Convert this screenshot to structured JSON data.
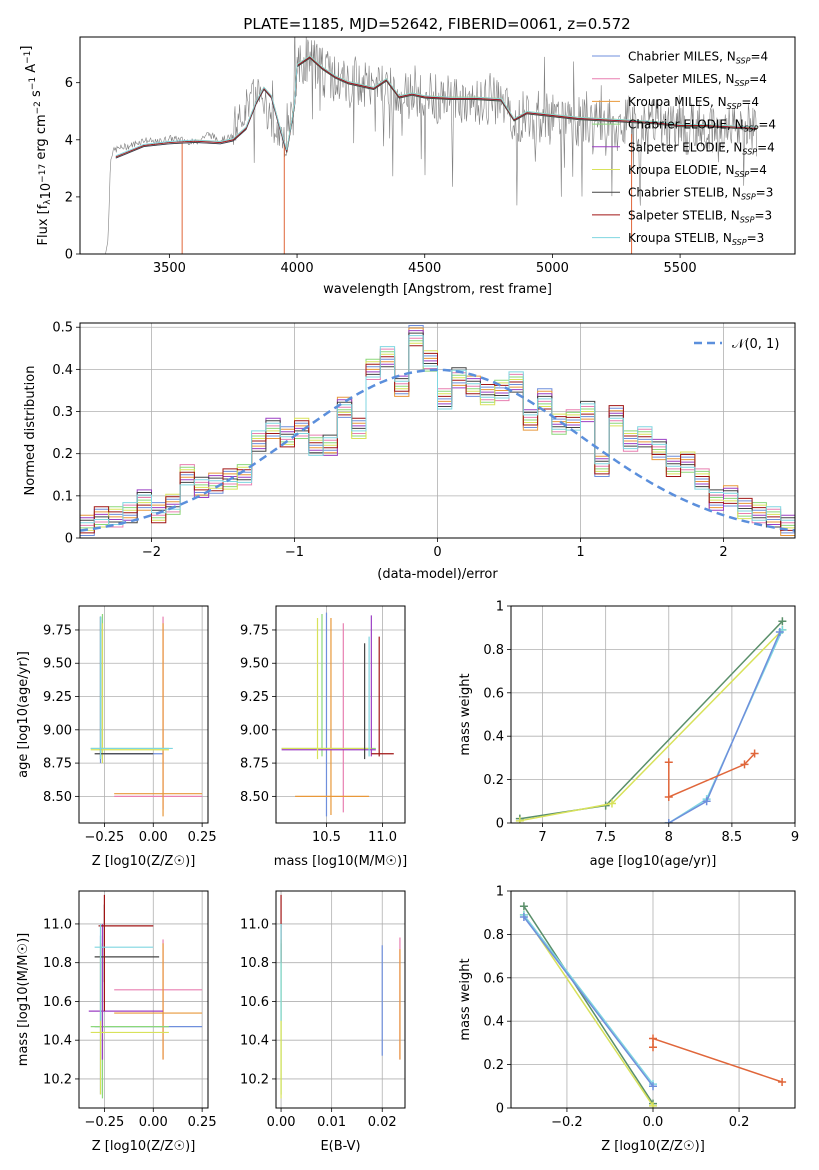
{
  "figure": {
    "title": "PLATE=1185, MJD=52642, FIBERID=0061, z=0.572"
  },
  "legend": [
    {
      "label": "Chabrier MILES, N",
      "sub": "SSP",
      "tail": "=4",
      "color": "#6f8fdc"
    },
    {
      "label": "Salpeter MILES, N",
      "sub": "SSP",
      "tail": "=4",
      "color": "#e87fb0"
    },
    {
      "label": "Kroupa MILES, N",
      "sub": "SSP",
      "tail": "=4",
      "color": "#e8983a"
    },
    {
      "label": "Chabrier ELODIE, N",
      "sub": "SSP",
      "tail": "=4",
      "color": "#8bd87a"
    },
    {
      "label": "Salpeter ELODIE, N",
      "sub": "SSP",
      "tail": "=4",
      "color": "#9b3fc4"
    },
    {
      "label": "Kroupa ELODIE, N",
      "sub": "SSP",
      "tail": "=4",
      "color": "#d8e25a"
    },
    {
      "label": "Chabrier STELIB, N",
      "sub": "SSP",
      "tail": "=3",
      "color": "#444444"
    },
    {
      "label": "Salpeter STELIB, N",
      "sub": "SSP",
      "tail": "=3",
      "color": "#a01515"
    },
    {
      "label": "Kroupa STELIB, N",
      "sub": "SSP",
      "tail": "=3",
      "color": "#7fd6e0"
    }
  ],
  "chart_data": [
    {
      "id": "spectrum",
      "type": "line",
      "xlabel": "wavelength [Angstrom, rest frame]",
      "ylabel": "Flux [f_λ 10^-17 erg cm^-2 s^-1 A^-1]",
      "xlim": [
        3150,
        5950
      ],
      "ylim": [
        0,
        7.6
      ],
      "xticks": [
        3500,
        4000,
        4500,
        5000,
        5500
      ],
      "yticks": [
        0,
        2,
        4,
        6
      ],
      "data_color": "#808080",
      "model_color": "#e0663a",
      "model_x": [
        3290,
        3400,
        3500,
        3600,
        3700,
        3750,
        3800,
        3840,
        3870,
        3900,
        3930,
        3960,
        3990,
        4000,
        4050,
        4100,
        4150,
        4200,
        4250,
        4300,
        4350,
        4400,
        4450,
        4500,
        4600,
        4700,
        4800,
        4850,
        4900,
        5000,
        5100,
        5200,
        5300,
        5400,
        5500,
        5600,
        5700,
        5800
      ],
      "model_y": [
        3.4,
        3.8,
        3.9,
        3.95,
        3.9,
        4.0,
        4.4,
        5.3,
        5.8,
        5.5,
        4.5,
        3.6,
        5.2,
        6.6,
        6.9,
        6.5,
        6.2,
        6.0,
        5.9,
        5.8,
        6.1,
        5.5,
        5.6,
        5.5,
        5.45,
        5.45,
        5.4,
        4.7,
        4.95,
        4.85,
        4.75,
        4.7,
        4.65,
        4.6,
        4.5,
        4.5,
        4.45,
        4.4
      ],
      "data_x": [
        3250,
        3260,
        3270,
        3280,
        3300,
        3350,
        3400,
        3450,
        3500,
        3550,
        3600,
        3650,
        3700,
        3750,
        3800,
        3850,
        3900,
        3950,
        4000,
        4050,
        4100,
        4150,
        4200,
        4250,
        4300,
        4350,
        4400,
        4450,
        4500,
        4550,
        4600,
        4650,
        4700,
        4750,
        4800,
        4850,
        4900,
        4950,
        5000,
        5050,
        5100,
        5150,
        5200,
        5250,
        5300,
        5350,
        5400,
        5450,
        5500,
        5550,
        5600,
        5650,
        5700,
        5750,
        5800
      ],
      "data_y": [
        0,
        0.5,
        3.4,
        3.6,
        3.7,
        3.8,
        4.0,
        3.9,
        4.05,
        4.0,
        3.9,
        4.2,
        4.0,
        4.1,
        5.2,
        5.8,
        4.6,
        3.9,
        6.5,
        6.9,
        6.4,
        6.1,
        6.0,
        5.9,
        5.8,
        6.0,
        5.3,
        5.6,
        5.5,
        5.4,
        5.5,
        5.4,
        5.4,
        5.3,
        5.3,
        4.6,
        5.0,
        4.8,
        4.7,
        4.8,
        4.6,
        4.7,
        4.5,
        4.4,
        4.7,
        4.3,
        4.6,
        4.5,
        4.3,
        4.4,
        4.6,
        4.3,
        4.5,
        4.4,
        4.4
      ]
    },
    {
      "id": "residuals",
      "type": "bar",
      "xlabel": "(data-model)/error",
      "ylabel": "Normed distribution",
      "xlim": [
        -2.5,
        2.5
      ],
      "ylim": [
        0,
        0.51
      ],
      "xticks": [
        -2,
        -1,
        0,
        1,
        2
      ],
      "yticks": [
        0.0,
        0.1,
        0.2,
        0.3,
        0.4,
        0.5
      ],
      "bin_width": 0.1,
      "bin_start": -2.5,
      "hist_values": [
        0.03,
        0.05,
        0.05,
        0.06,
        0.09,
        0.06,
        0.08,
        0.15,
        0.12,
        0.13,
        0.14,
        0.15,
        0.23,
        0.26,
        0.24,
        0.26,
        0.22,
        0.22,
        0.31,
        0.26,
        0.4,
        0.43,
        0.36,
        0.48,
        0.42,
        0.33,
        0.38,
        0.36,
        0.34,
        0.35,
        0.37,
        0.28,
        0.33,
        0.27,
        0.28,
        0.3,
        0.17,
        0.29,
        0.23,
        0.24,
        0.21,
        0.17,
        0.18,
        0.14,
        0.09,
        0.1,
        0.07,
        0.06,
        0.05,
        0.03
      ],
      "gaussian_label": "𝒩(0, 1)",
      "gaussian_color": "#5b8fdc"
    },
    {
      "id": "age-vs-Z",
      "type": "scatter",
      "xlabel": "Z [log10(Z/Z☉)]",
      "ylabel": "age [log10(age/yr)]",
      "xlim": [
        -0.38,
        0.28
      ],
      "ylim": [
        8.3,
        9.93
      ],
      "xticks": [
        -0.25,
        0.0,
        0.25
      ],
      "xtick_labels": [
        "−0.25",
        "0.00",
        "0.25"
      ],
      "yticks": [
        8.5,
        8.75,
        9.0,
        9.25,
        9.5,
        9.75
      ],
      "ytick_labels": [
        "8.50",
        "8.75",
        "9.00",
        "9.25",
        "9.50",
        "9.75"
      ]
    },
    {
      "id": "age-vs-mass",
      "type": "scatter",
      "xlabel": "mass [log10(M/M☉)]",
      "ylabel": "",
      "xlim": [
        10.05,
        11.2
      ],
      "ylim": [
        8.3,
        9.93
      ],
      "xticks": [
        10.5,
        11.0
      ],
      "xtick_labels": [
        "10.5",
        "11.0"
      ],
      "yticks": [
        8.5,
        8.75,
        9.0,
        9.25,
        9.5,
        9.75
      ],
      "ytick_labels": [
        "8.50",
        "8.75",
        "9.00",
        "9.25",
        "9.50",
        "9.75"
      ]
    },
    {
      "id": "mass-weight-vs-age",
      "type": "line",
      "xlabel": "age [log10(age/yr)]",
      "ylabel": "mass weight",
      "xlim": [
        6.75,
        9.0
      ],
      "ylim": [
        0,
        1.0
      ],
      "xticks": [
        7.0,
        7.5,
        8.0,
        8.5,
        9.0
      ],
      "yticks": [
        0.0,
        0.2,
        0.4,
        0.6,
        0.8,
        1.0
      ],
      "series": [
        {
          "color": "#5a8f6a",
          "x": [
            6.82,
            7.5,
            8.9
          ],
          "y": [
            0.02,
            0.08,
            0.93
          ]
        },
        {
          "color": "#d8e25a",
          "x": [
            6.82,
            7.55,
            8.9
          ],
          "y": [
            0.01,
            0.09,
            0.89
          ]
        },
        {
          "color": "#7fd6e0",
          "x": [
            8.0,
            8.3,
            8.9
          ],
          "y": [
            0.0,
            0.11,
            0.89
          ]
        },
        {
          "color": "#6f8fdc",
          "x": [
            8.0,
            8.3,
            8.88
          ],
          "y": [
            0.0,
            0.1,
            0.88
          ]
        },
        {
          "color": "#e0663a",
          "x": [
            8.0,
            8.0,
            8.6,
            8.68
          ],
          "y": [
            0.28,
            0.12,
            0.27,
            0.32
          ]
        }
      ]
    },
    {
      "id": "mass-vs-Z",
      "type": "scatter",
      "xlabel": "Z [log10(Z/Z☉)]",
      "ylabel": "mass [log10(M/M☉)]",
      "xlim": [
        -0.38,
        0.28
      ],
      "ylim": [
        10.05,
        11.17
      ],
      "xticks": [
        -0.25,
        0.0,
        0.25
      ],
      "xtick_labels": [
        "−0.25",
        "0.00",
        "0.25"
      ],
      "yticks": [
        10.2,
        10.4,
        10.6,
        10.8,
        11.0
      ],
      "ytick_labels": [
        "10.2",
        "10.4",
        "10.6",
        "10.8",
        "11.0"
      ]
    },
    {
      "id": "mass-vs-EBV",
      "type": "scatter",
      "xlabel": "E(B-V)",
      "ylabel": "",
      "xlim": [
        -0.001,
        0.0245
      ],
      "ylim": [
        10.05,
        11.17
      ],
      "xticks": [
        0.0,
        0.01,
        0.02
      ],
      "xtick_labels": [
        "0.00",
        "0.01",
        "0.02"
      ],
      "yticks": [
        10.2,
        10.4,
        10.6,
        10.8,
        11.0
      ],
      "ytick_labels": [
        "10.2",
        "10.4",
        "10.6",
        "10.8",
        "11.0"
      ]
    },
    {
      "id": "mass-weight-vs-Z",
      "type": "line",
      "xlabel": "Z [log10(Z/Z☉)]",
      "ylabel": "mass weight",
      "xlim": [
        -0.33,
        0.33
      ],
      "ylim": [
        0,
        1.0
      ],
      "xticks": [
        -0.2,
        0.0,
        0.2
      ],
      "xtick_labels": [
        "−0.2",
        "0.0",
        "0.2"
      ],
      "yticks": [
        0.0,
        0.2,
        0.4,
        0.6,
        0.8,
        1.0
      ],
      "series": [
        {
          "color": "#5a8f6a",
          "x": [
            -0.3,
            0.0
          ],
          "y": [
            0.93,
            0.02
          ]
        },
        {
          "color": "#d8e25a",
          "x": [
            -0.3,
            0.0
          ],
          "y": [
            0.89,
            0.01
          ]
        },
        {
          "color": "#7fd6e0",
          "x": [
            -0.3,
            0.0
          ],
          "y": [
            0.89,
            0.11
          ]
        },
        {
          "color": "#6f8fdc",
          "x": [
            -0.3,
            0.0
          ],
          "y": [
            0.88,
            0.1
          ]
        },
        {
          "color": "#e0663a",
          "x": [
            0.0,
            0.0,
            0.3
          ],
          "y": [
            0.28,
            0.32,
            0.12
          ]
        }
      ]
    }
  ]
}
